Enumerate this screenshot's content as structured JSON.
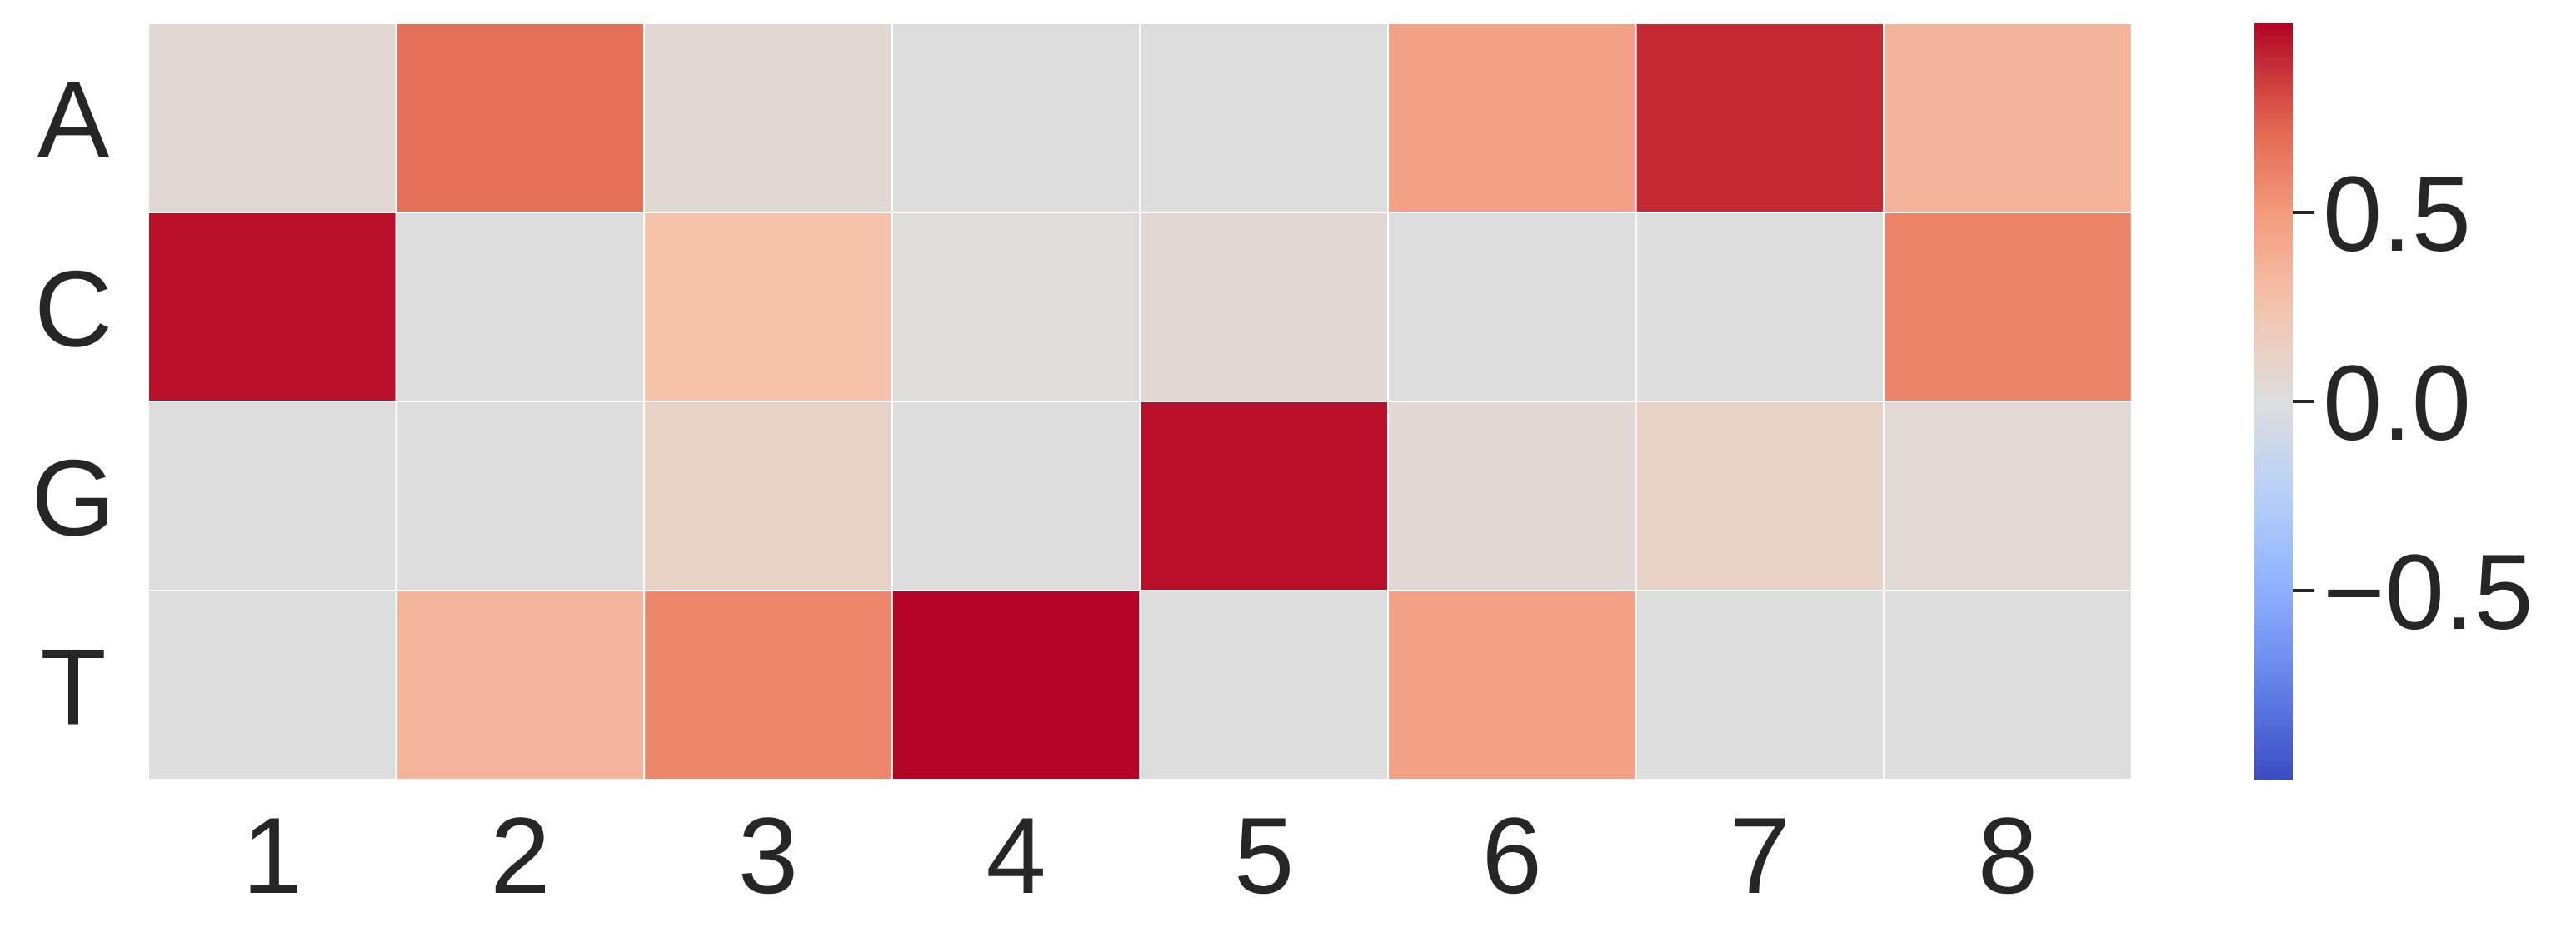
{
  "chart_data": {
    "type": "heatmap",
    "rows": [
      "A",
      "C",
      "G",
      "T"
    ],
    "columns": [
      "1",
      "2",
      "3",
      "4",
      "5",
      "6",
      "7",
      "8"
    ],
    "values": [
      [
        0.05,
        0.68,
        0.05,
        0.0,
        0.0,
        0.45,
        0.9,
        0.35
      ],
      [
        0.97,
        0.0,
        0.26,
        0.02,
        0.06,
        0.0,
        0.0,
        0.6
      ],
      [
        0.0,
        0.0,
        0.11,
        0.0,
        0.97,
        0.05,
        0.12,
        0.04
      ],
      [
        0.0,
        0.34,
        0.58,
        1.0,
        0.0,
        0.45,
        0.0,
        0.0
      ]
    ],
    "colormap": "coolwarm",
    "vmin": -1.0,
    "vmax": 1.0,
    "colorbar": {
      "ticks": [
        0.5,
        0.0,
        -0.5
      ],
      "tick_labels": [
        "0.5",
        "0.0",
        "−0.5"
      ],
      "colors": [
        "#3b4cc0",
        "#dddddd",
        "#b40426"
      ]
    },
    "grid_line_color": "#ffffff"
  }
}
